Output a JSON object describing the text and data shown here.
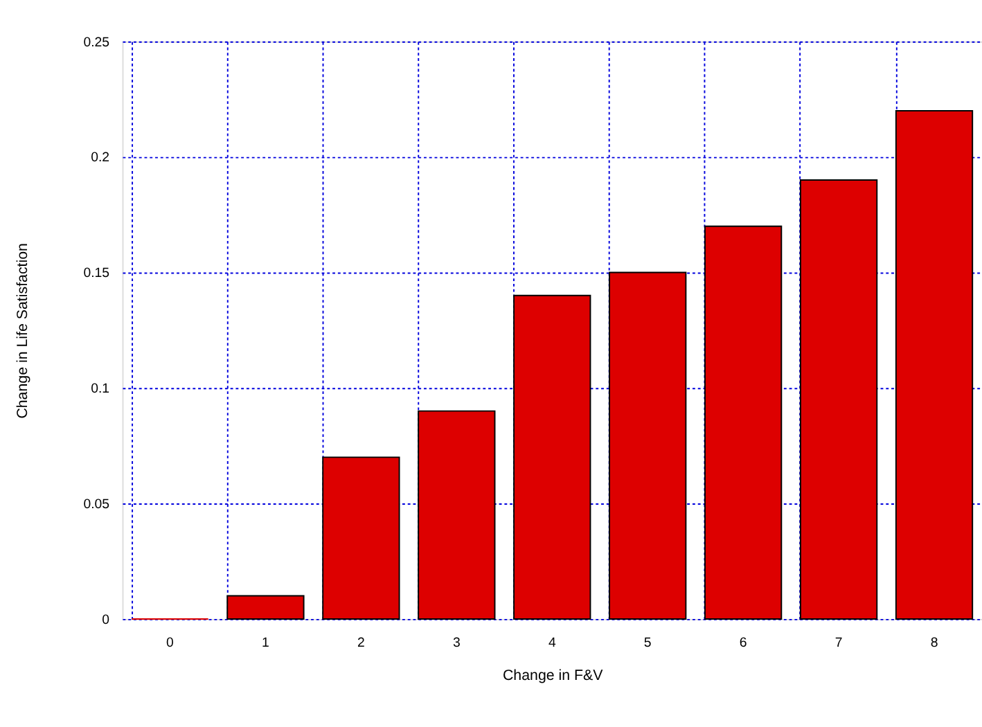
{
  "chart_data": {
    "type": "bar",
    "xlabel": "Change in F&V",
    "ylabel": "Change in Life Satisfaction",
    "categories": [
      "0",
      "1",
      "2",
      "3",
      "4",
      "5",
      "6",
      "7",
      "8"
    ],
    "values": [
      0,
      0.01,
      0.07,
      0.09,
      0.14,
      0.15,
      0.17,
      0.19,
      0.22
    ],
    "color": "#dd0000",
    "ylim": [
      0,
      0.25
    ],
    "yticks": [
      0,
      0.05,
      0.1,
      0.15,
      0.2,
      0.25
    ],
    "grid": true
  }
}
